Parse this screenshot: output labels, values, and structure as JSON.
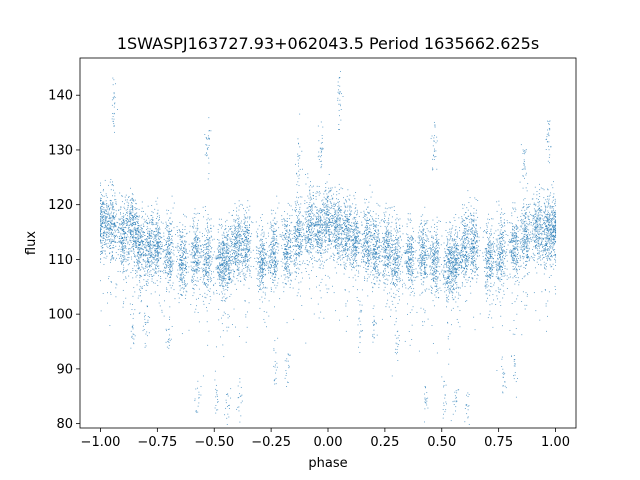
{
  "chart_data": {
    "type": "scatter",
    "title": "1SWASPJ163727.93+062043.5 Period 1635662.625s",
    "xlabel": "phase",
    "ylabel": "flux",
    "xlim": [
      -1.09,
      1.09
    ],
    "ylim": [
      79.2,
      146.8
    ],
    "grid": false,
    "legend": "none",
    "marker_color": "#1f77b4",
    "x_ticks": [
      -1.0,
      -0.75,
      -0.5,
      -0.25,
      0.0,
      0.25,
      0.5,
      0.75,
      1.0
    ],
    "x_tick_labels": [
      "−1.00",
      "−0.75",
      "−0.50",
      "−0.25",
      "0.00",
      "0.25",
      "0.50",
      "0.75",
      "1.00"
    ],
    "y_ticks": [
      80,
      90,
      100,
      110,
      120,
      130,
      140
    ],
    "y_tick_labels": [
      "80",
      "90",
      "100",
      "110",
      "120",
      "130",
      "140"
    ],
    "series": [
      {
        "phase_fold": {
          "period_in_phase": 1.0,
          "mirror_range": [
            -1.0,
            1.0
          ]
        },
        "clusters": [
          {
            "x": -0.99,
            "y": 117
          },
          {
            "x": -0.95,
            "y": 116
          },
          {
            "x": -0.9,
            "y": 114
          },
          {
            "x": -0.86,
            "y": 116
          },
          {
            "x": -0.83,
            "y": 113
          },
          {
            "x": -0.79,
            "y": 112
          },
          {
            "x": -0.75,
            "y": 113
          },
          {
            "x": -0.7,
            "y": 111
          },
          {
            "x": -0.64,
            "y": 110
          },
          {
            "x": -0.58,
            "y": 111
          },
          {
            "x": -0.53,
            "y": 110
          },
          {
            "x": -0.47,
            "y": 109
          },
          {
            "x": -0.44,
            "y": 110
          },
          {
            "x": -0.4,
            "y": 113
          },
          {
            "x": -0.36,
            "y": 113
          },
          {
            "x": -0.29,
            "y": 110
          },
          {
            "x": -0.24,
            "y": 111
          },
          {
            "x": -0.18,
            "y": 112
          },
          {
            "x": -0.13,
            "y": 114
          },
          {
            "x": -0.08,
            "y": 116
          },
          {
            "x": -0.04,
            "y": 115
          },
          {
            "x": 0.0,
            "y": 117
          },
          {
            "x": 0.04,
            "y": 116
          },
          {
            "x": 0.08,
            "y": 115
          },
          {
            "x": 0.12,
            "y": 114
          },
          {
            "x": 0.17,
            "y": 113
          },
          {
            "x": 0.21,
            "y": 112
          },
          {
            "x": 0.26,
            "y": 112
          },
          {
            "x": 0.3,
            "y": 110
          },
          {
            "x": 0.36,
            "y": 110
          },
          {
            "x": 0.42,
            "y": 111
          },
          {
            "x": 0.47,
            "y": 110
          },
          {
            "x": 0.53,
            "y": 109
          },
          {
            "x": 0.56,
            "y": 110
          },
          {
            "x": 0.6,
            "y": 112
          },
          {
            "x": 0.64,
            "y": 113
          },
          {
            "x": 0.71,
            "y": 110
          },
          {
            "x": 0.76,
            "y": 111
          },
          {
            "x": 0.82,
            "y": 112
          },
          {
            "x": 0.87,
            "y": 114
          },
          {
            "x": 0.92,
            "y": 116
          },
          {
            "x": 0.96,
            "y": 115
          },
          {
            "x": 0.99,
            "y": 116
          }
        ],
        "outliers_high": [
          {
            "x": -0.94,
            "y": 138.5
          },
          {
            "x": 0.05,
            "y": 138.5
          },
          {
            "x": -0.13,
            "y": 127
          },
          {
            "x": 0.86,
            "y": 127
          },
          {
            "x": -0.53,
            "y": 131
          },
          {
            "x": 0.47,
            "y": 131
          },
          {
            "x": -0.03,
            "y": 130
          },
          {
            "x": 0.97,
            "y": 132
          }
        ],
        "outliers_low": [
          {
            "x": -0.86,
            "y": 97
          },
          {
            "x": -0.8,
            "y": 98
          },
          {
            "x": -0.7,
            "y": 96
          },
          {
            "x": -0.57,
            "y": 84
          },
          {
            "x": -0.49,
            "y": 85
          },
          {
            "x": -0.44,
            "y": 84
          },
          {
            "x": -0.39,
            "y": 84
          },
          {
            "x": -0.23,
            "y": 89
          },
          {
            "x": -0.18,
            "y": 90
          },
          {
            "x": 0.14,
            "y": 97
          },
          {
            "x": 0.2,
            "y": 98
          },
          {
            "x": 0.3,
            "y": 96
          },
          {
            "x": 0.43,
            "y": 84
          },
          {
            "x": 0.51,
            "y": 85
          },
          {
            "x": 0.56,
            "y": 84
          },
          {
            "x": 0.61,
            "y": 84
          },
          {
            "x": 0.77,
            "y": 89
          },
          {
            "x": 0.82,
            "y": 90
          }
        ]
      }
    ]
  }
}
